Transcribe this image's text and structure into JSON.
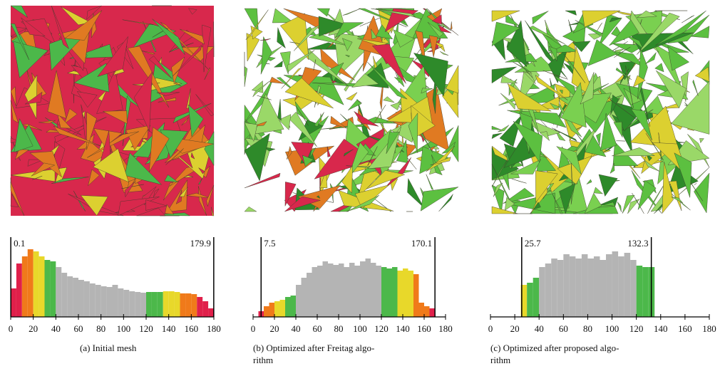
{
  "band_edges": [
    0,
    10,
    20,
    30,
    40,
    120,
    135,
    150,
    165,
    180
  ],
  "band_colors": [
    "#e0204a",
    "#f07a1a",
    "#e8d82a",
    "#4cb84a",
    "#b4b4b4",
    "#4cb84a",
    "#e8d82a",
    "#f07a1a",
    "#e0204a"
  ],
  "panels": [
    {
      "caption": [
        "(a)  Initial mesh"
      ],
      "histogram": {
        "type": "histogram",
        "min": 0.1,
        "max": 179.9,
        "xlim": [
          0,
          180
        ],
        "xticks": [
          0,
          20,
          40,
          60,
          80,
          100,
          120,
          140,
          160,
          180
        ],
        "bins": [
          0,
          5,
          10,
          15,
          20,
          25,
          30,
          35,
          40,
          45,
          50,
          55,
          60,
          65,
          70,
          75,
          80,
          85,
          90,
          95,
          100,
          105,
          110,
          115,
          120,
          125,
          130,
          135,
          140,
          145,
          150,
          155,
          160,
          165,
          170,
          175,
          180
        ],
        "counts": [
          40,
          75,
          85,
          95,
          92,
          85,
          80,
          78,
          70,
          62,
          57,
          55,
          52,
          50,
          47,
          45,
          43,
          42,
          45,
          40,
          38,
          36,
          35,
          34,
          35,
          35,
          35,
          36,
          36,
          35,
          33,
          33,
          32,
          28,
          22,
          12
        ]
      }
    },
    {
      "caption": [
        "(b)  Optimized after Freitag algo-",
        "rithm"
      ],
      "histogram": {
        "type": "histogram",
        "min": 7.5,
        "max": 170.1,
        "xlim": [
          0,
          180
        ],
        "xticks": [
          0,
          20,
          40,
          60,
          80,
          100,
          120,
          140,
          160,
          180
        ],
        "bins": [
          5,
          10,
          15,
          20,
          25,
          30,
          35,
          40,
          45,
          50,
          55,
          60,
          65,
          70,
          75,
          80,
          85,
          90,
          95,
          100,
          105,
          110,
          115,
          120,
          125,
          130,
          135,
          140,
          145,
          150,
          155,
          160,
          165,
          170
        ],
        "counts": [
          8,
          15,
          20,
          22,
          24,
          28,
          30,
          45,
          55,
          62,
          70,
          72,
          78,
          75,
          73,
          75,
          70,
          76,
          72,
          78,
          82,
          76,
          72,
          70,
          68,
          70,
          65,
          68,
          65,
          60,
          20,
          15,
          12
        ]
      }
    },
    {
      "caption": [
        "(c)  Optimized after proposed algo-",
        "rithm"
      ],
      "histogram": {
        "type": "histogram",
        "min": 25.7,
        "max": 132.3,
        "xlim": [
          0,
          180
        ],
        "xticks": [
          0,
          20,
          40,
          60,
          80,
          100,
          120,
          140,
          160,
          180
        ],
        "bins": [
          25,
          30,
          35,
          40,
          45,
          50,
          55,
          60,
          65,
          70,
          75,
          80,
          85,
          90,
          95,
          100,
          105,
          110,
          115,
          120,
          125,
          130,
          135
        ],
        "counts": [
          45,
          48,
          55,
          70,
          75,
          82,
          80,
          88,
          85,
          82,
          88,
          82,
          85,
          80,
          88,
          92,
          85,
          90,
          80,
          72,
          70,
          70
        ]
      }
    }
  ]
}
